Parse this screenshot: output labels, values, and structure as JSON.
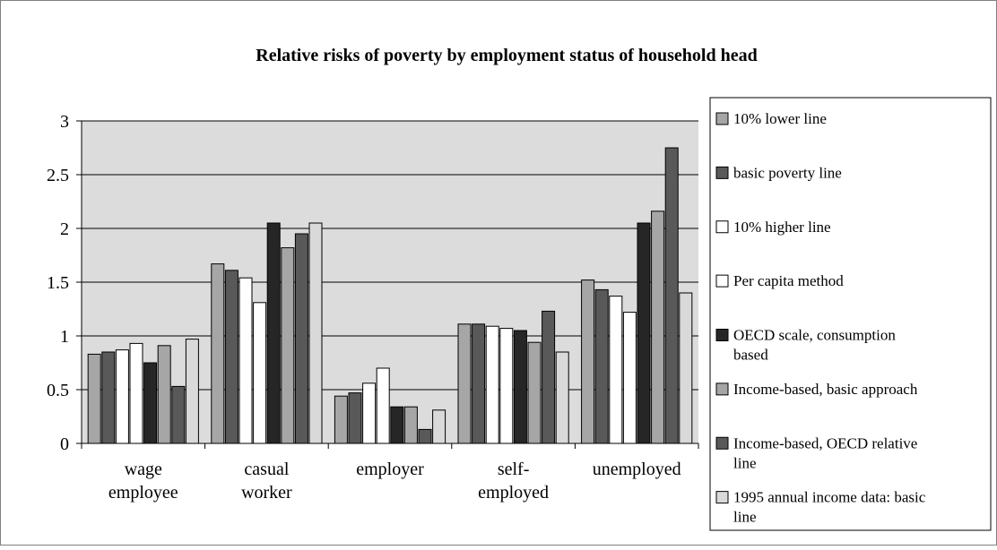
{
  "chart_data": {
    "type": "bar",
    "title": "Relative risks of poverty by employment status of household head",
    "xlabel": "",
    "ylabel": "",
    "ylim": [
      0,
      3
    ],
    "yticks": [
      "0",
      "0.5",
      "1",
      "1.5",
      "2",
      "2.5",
      "3"
    ],
    "grid": true,
    "legend_position": "right",
    "categories": [
      [
        "wage",
        "employee"
      ],
      [
        "casual",
        "worker"
      ],
      [
        "employer"
      ],
      [
        "self-",
        "employed"
      ],
      [
        "unemployed"
      ]
    ],
    "series": [
      {
        "name": [
          "10% lower line"
        ],
        "color": "#a6a6a6",
        "values": [
          0.83,
          1.67,
          0.44,
          1.11,
          1.52
        ]
      },
      {
        "name": [
          "basic poverty line"
        ],
        "color": "#595959",
        "values": [
          0.85,
          1.61,
          0.47,
          1.11,
          1.43
        ]
      },
      {
        "name": [
          "10% higher line"
        ],
        "color": "#ffffff",
        "values": [
          0.87,
          1.54,
          0.56,
          1.09,
          1.37
        ]
      },
      {
        "name": [
          "Per capita method"
        ],
        "color": "#ffffff",
        "values": [
          0.93,
          1.31,
          0.7,
          1.07,
          1.22
        ]
      },
      {
        "name": [
          "OECD scale, consumption",
          "based"
        ],
        "color": "#262626",
        "values": [
          0.75,
          2.05,
          0.34,
          1.05,
          2.05
        ]
      },
      {
        "name": [
          "Income-based, basic approach"
        ],
        "color": "#a6a6a6",
        "values": [
          0.91,
          1.82,
          0.34,
          0.94,
          2.16
        ]
      },
      {
        "name": [
          "Income-based, OECD relative",
          "line"
        ],
        "color": "#595959",
        "values": [
          0.53,
          1.95,
          0.13,
          1.23,
          2.75
        ]
      },
      {
        "name": [
          "1995 annual income data: basic",
          "line"
        ],
        "color": "#d9d9d9",
        "values": [
          0.97,
          2.05,
          0.31,
          0.85,
          1.4
        ]
      }
    ]
  }
}
